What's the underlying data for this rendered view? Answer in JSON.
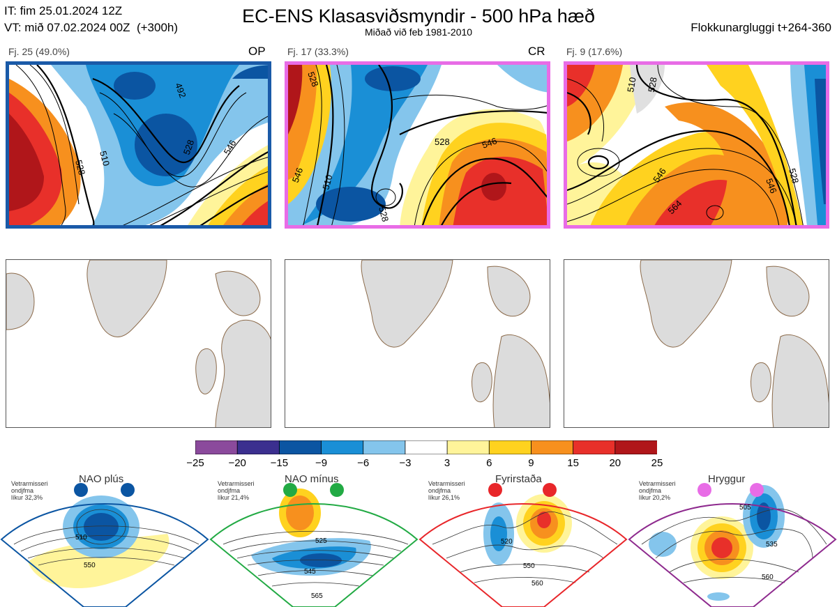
{
  "header": {
    "it_line": "IT: fim 25.01.2024 12Z",
    "vt_line": "VT: mið 07.02.2024 00Z  (+300h)",
    "title": "EC-ENS Klasasviðsmyndir - 500 hPa hæð",
    "subtitle": "Miðað við feb 1981-2010",
    "window": "Flokkunargluggi t+264-360"
  },
  "clusters": [
    {
      "label": "Fj. 25 (49.0%)",
      "tag": "OP",
      "border_color": "#1a5aa8",
      "contour_labels": [
        "528",
        "492",
        "510",
        "528",
        "546",
        "528",
        "510",
        "546",
        "564"
      ]
    },
    {
      "label": "Fj. 17 (33.3%)",
      "tag": "CR",
      "border_color": "#e86ce6",
      "contour_labels": [
        "546",
        "528",
        "510",
        "528",
        "528",
        "546",
        "546",
        "510",
        "546",
        "564"
      ]
    },
    {
      "label": "Fj. 9 (17.6%)",
      "tag": "",
      "border_color": "#e86ce6",
      "contour_labels": [
        "510",
        "528",
        "546",
        "564",
        "546",
        "528"
      ]
    }
  ],
  "colorbar": {
    "ticks": [
      "−25",
      "−20",
      "−15",
      "−9",
      "−6",
      "−3",
      "3",
      "6",
      "9",
      "15",
      "20",
      "25"
    ],
    "colors": [
      "#8b4a9c",
      "#3b2f8f",
      "#0b55a2",
      "#1a8fd6",
      "#84c5ec",
      "#ffffff",
      "#fff49a",
      "#ffd21f",
      "#f7901e",
      "#e8302a",
      "#b0161a"
    ]
  },
  "regimes": [
    {
      "name": "NAO plús",
      "info": "Vetrarmisseri\nondjfma\nlíkur 32,3%",
      "color": "#0b55a2",
      "contour_labels": [
        "510",
        "550"
      ]
    },
    {
      "name": "NAO mínus",
      "info": "Vetrarmisseri\nondjfma\nlíkur 21,4%",
      "color": "#22aa44",
      "contour_labels": [
        "525",
        "545",
        "565"
      ]
    },
    {
      "name": "Fyrirstaða",
      "info": "Vetrarmisseri\nondjfma\nlíkur 26,1%",
      "color": "#e8262a",
      "contour_labels": [
        "520",
        "550",
        "560"
      ]
    },
    {
      "name": "Hryggur",
      "info": "Vetrarmisseri\nondjfma\nlíkur 20,2%",
      "color": "#e86ce6",
      "contour_labels": [
        "505",
        "535",
        "560"
      ]
    }
  ]
}
